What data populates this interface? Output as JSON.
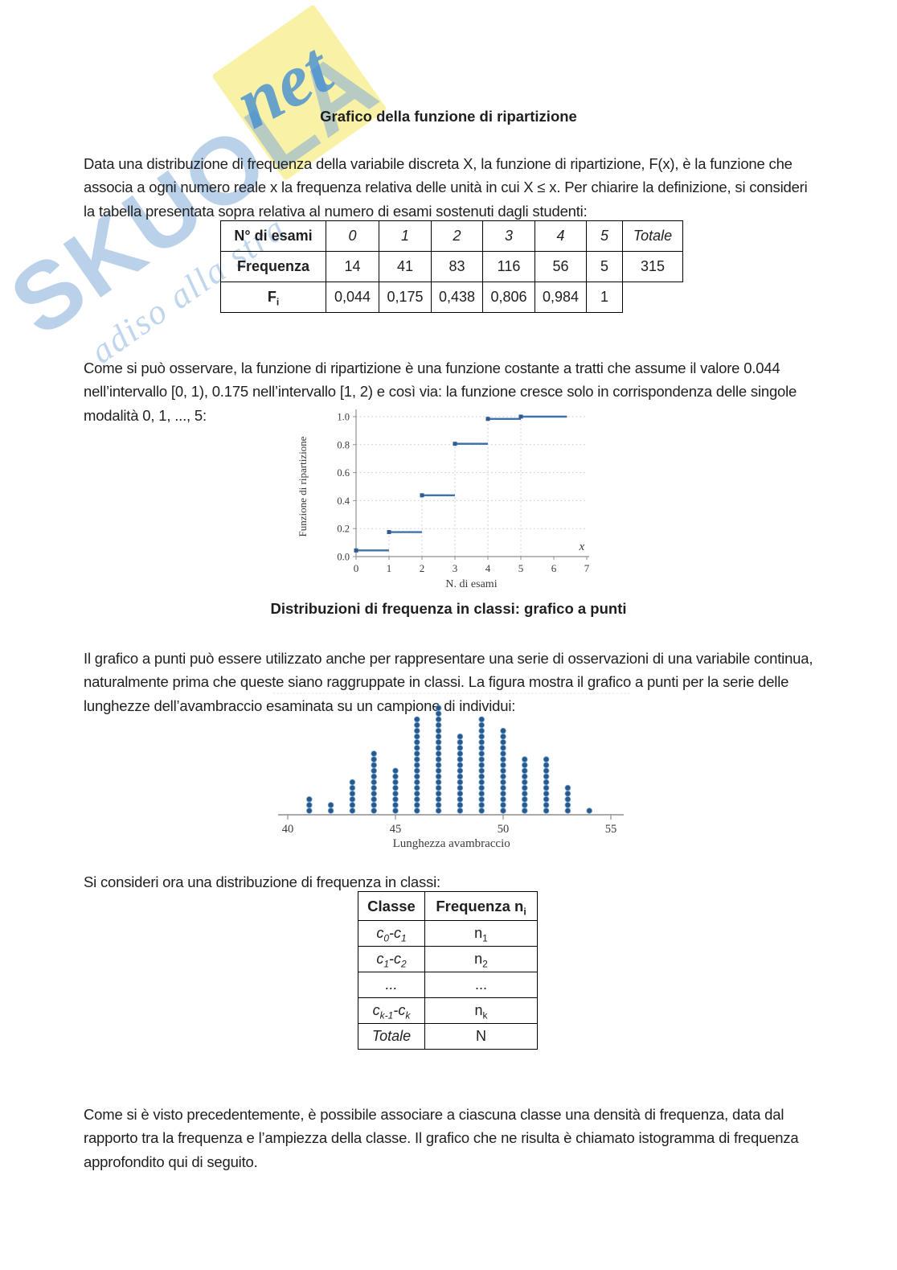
{
  "doc": {
    "title": "Grafico della funzione di ripartizione",
    "p1": "Data una distribuzione di frequenza della variabile discreta X, la funzione di ripartizione, F(x), è la funzione che associa a ogni numero reale x la frequenza relativa delle unità in cui X ≤ x. Per chiarire la definizione, si consideri la tabella presentata sopra relativa al numero di esami sostenuti dagli studenti:",
    "p2": "Come si può osservare, la funzione di ripartizione è una funzione costante a tratti che assume il valore 0.044 nell’intervallo [0, 1), 0.175 nell’intervallo [1, 2) e così via: la funzione cresce solo in corrispondenza delle singole modalità 0, 1, ..., 5:",
    "section2_title": "Distribuzioni di frequenza in classi: grafico a punti",
    "p3": "Il grafico a punti può essere utilizzato anche per rappresentare una serie di osservazioni di una variabile continua, naturalmente prima che queste siano raggruppate in classi. La figura mostra il grafico a punti per la serie delle lunghezze dell’avambraccio esaminata su un campione di individui:",
    "p4": "Si consideri ora una distribuzione di frequenza in classi:",
    "p5": "Come si è visto precedentemente, è possibile associare a ciascuna classe una densità di frequenza, data dal rapporto tra la frequenza e l’ampiezza della classe. Il grafico che ne risulta è chiamato istogramma di frequenza approfondito qui di seguito."
  },
  "exam_table": {
    "rows": [
      {
        "label": "N° di esami",
        "values": [
          "0",
          "1",
          "2",
          "3",
          "4",
          "5",
          "Totale"
        ]
      },
      {
        "label": "Frequenza",
        "values": [
          "14",
          "41",
          "83",
          "116",
          "56",
          "5",
          "315"
        ]
      },
      {
        "label": "F_i",
        "values": [
          "0,044",
          "0,175",
          "0,438",
          "0,806",
          "0,984",
          "1",
          ""
        ]
      }
    ]
  },
  "class_table": {
    "headers": [
      "Classe",
      "Frequenza n_i"
    ],
    "rows": [
      [
        "c_0-c_1",
        "n_1"
      ],
      [
        "c_1-c_2",
        "n_2"
      ],
      [
        "...",
        "..."
      ],
      [
        "c_{k-1}-c_k",
        "n_k"
      ],
      [
        "Totale",
        "N"
      ]
    ]
  },
  "watermark": {
    "brand": "SKUOLA",
    "suffix": "net",
    "slogan": "adiso alla stra",
    "colors": {
      "blue": "#82acd8",
      "net_blue": "#408cd2",
      "yellow": "#f9f2a6"
    }
  },
  "chart_data": [
    {
      "type": "step",
      "title": "Funzione di ripartizione del numero di esami",
      "xlabel": "N. di esami",
      "ylabel": "Funzione di ripartizione",
      "corner_label": "x",
      "x_ticks": [
        0,
        1,
        2,
        3,
        4,
        5,
        6,
        7
      ],
      "y_ticks": [
        0.0,
        0.2,
        0.4,
        0.6,
        0.8,
        1.0
      ],
      "xlim": [
        0,
        7
      ],
      "ylim": [
        0,
        1.0
      ],
      "grid": "dotted-horizontal",
      "steps": [
        {
          "from": 0,
          "to": 1,
          "value": 0.044
        },
        {
          "from": 1,
          "to": 2,
          "value": 0.175
        },
        {
          "from": 2,
          "to": 3,
          "value": 0.438
        },
        {
          "from": 3,
          "to": 4,
          "value": 0.806
        },
        {
          "from": 4,
          "to": 5,
          "value": 0.984
        },
        {
          "from": 5,
          "to": 6.4,
          "value": 1.0
        }
      ],
      "line_color": "#3f72ad",
      "marker_color": "#2d5c92"
    },
    {
      "type": "dotplot",
      "xlabel": "Lunghezza avambraccio",
      "x_ticks": [
        40,
        45,
        50,
        55
      ],
      "xlim": [
        40,
        55
      ],
      "columns": [
        {
          "x": 41,
          "count": 3
        },
        {
          "x": 42,
          "count": 2
        },
        {
          "x": 43,
          "count": 6
        },
        {
          "x": 44,
          "count": 11
        },
        {
          "x": 45,
          "count": 8
        },
        {
          "x": 46,
          "count": 17
        },
        {
          "x": 47,
          "count": 19
        },
        {
          "x": 48,
          "count": 14
        },
        {
          "x": 49,
          "count": 17
        },
        {
          "x": 50,
          "count": 15
        },
        {
          "x": 51,
          "count": 10
        },
        {
          "x": 52,
          "count": 10
        },
        {
          "x": 53,
          "count": 5
        },
        {
          "x": 54,
          "count": 1
        }
      ],
      "dot_color": "#27598f"
    }
  ]
}
